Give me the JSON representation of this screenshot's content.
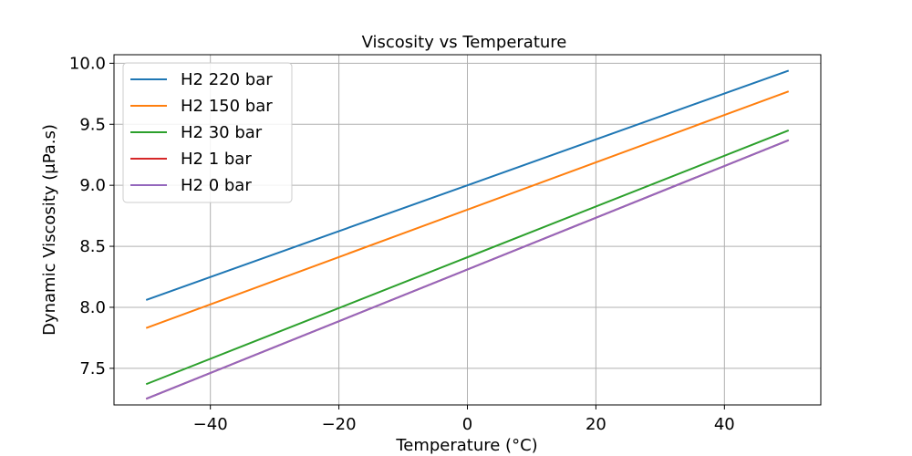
{
  "chart_data": {
    "type": "line",
    "title": "Viscosity vs Temperature",
    "xlabel": "Temperature (°C)",
    "ylabel": "Dynamic Viscosity (μPa.s)",
    "xlim": [
      -55,
      55
    ],
    "ylim": [
      7.2,
      10.07
    ],
    "xticks": [
      -40,
      -20,
      0,
      20,
      40
    ],
    "xtick_labels": [
      "−40",
      "−20",
      "0",
      "20",
      "40"
    ],
    "yticks": [
      7.5,
      8.0,
      8.5,
      9.0,
      9.5,
      10.0
    ],
    "ytick_labels": [
      "7.5",
      "8.0",
      "8.5",
      "9.0",
      "9.5",
      "10.0"
    ],
    "grid": true,
    "legend_position": "top-left",
    "series": [
      {
        "name": "H2 220 bar",
        "color": "#1f77b4",
        "x": [
          -50,
          50
        ],
        "y": [
          8.06,
          9.94
        ]
      },
      {
        "name": "H2 150 bar",
        "color": "#ff7f0e",
        "x": [
          -50,
          50
        ],
        "y": [
          7.83,
          9.77
        ]
      },
      {
        "name": "H2 30 bar",
        "color": "#2ca02c",
        "x": [
          -50,
          50
        ],
        "y": [
          7.37,
          9.45
        ]
      },
      {
        "name": "H2 1 bar",
        "color": "#d62728",
        "x": [
          -50,
          50
        ],
        "y": [
          7.25,
          9.37
        ]
      },
      {
        "name": "H2 0 bar",
        "color": "#9467bd",
        "x": [
          -50,
          50
        ],
        "y": [
          7.25,
          9.37
        ]
      }
    ]
  }
}
